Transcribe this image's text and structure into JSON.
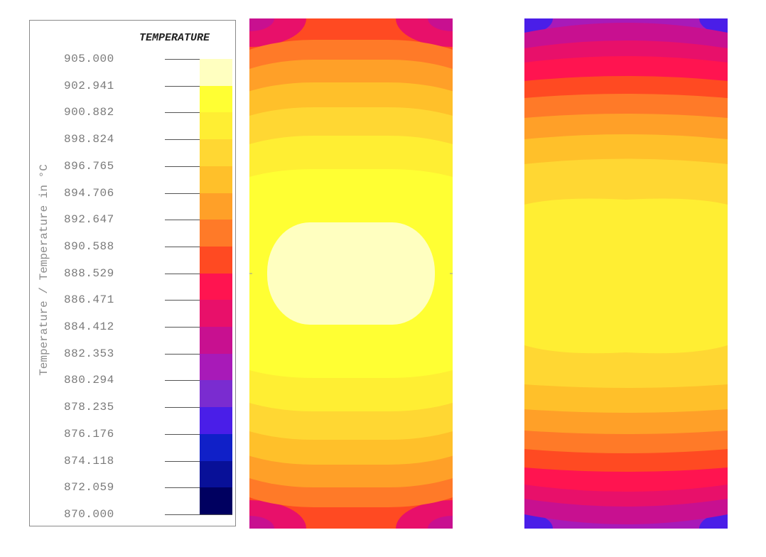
{
  "legend": {
    "title": "TEMPERATURE",
    "axis_label": "Temperature / Temperature in °C",
    "ticks": [
      "905.000",
      "902.941",
      "900.882",
      "898.824",
      "896.765",
      "894.706",
      "892.647",
      "890.588",
      "888.529",
      "886.471",
      "884.412",
      "882.353",
      "880.294",
      "878.235",
      "876.176",
      "874.118",
      "872.059",
      "870.000"
    ],
    "colors": [
      "#FFFFC0",
      "#FFFF33",
      "#FFEE33",
      "#FFD733",
      "#FFC02A",
      "#FFA028",
      "#FF7A28",
      "#FF4A22",
      "#FF1450",
      "#E8106A",
      "#C81090",
      "#A81AB8",
      "#7A2CD0",
      "#4A1EE8",
      "#1020C8",
      "#081098",
      "#000060"
    ]
  },
  "plots": [
    {
      "name": "contour-plot-left"
    },
    {
      "name": "contour-plot-right"
    }
  ]
}
